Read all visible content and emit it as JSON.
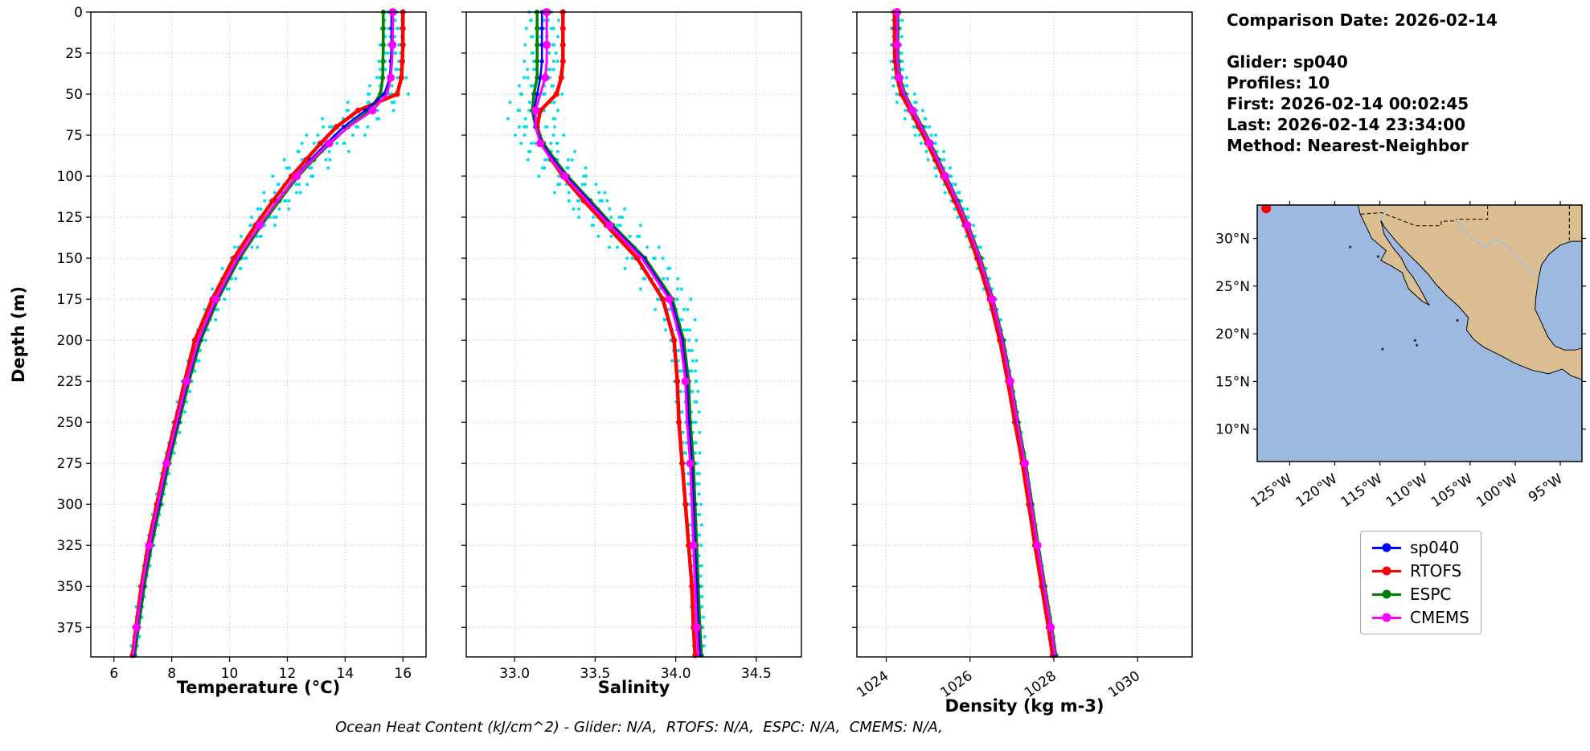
{
  "info_panel": {
    "comparison_date": "Comparison Date: 2026-02-14",
    "glider": "Glider: sp040",
    "profiles": "Profiles: 10",
    "first": "First: 2026-02-14 00:02:45",
    "last": "Last: 2026-02-14 23:34:00",
    "method": "Method: Nearest-Neighbor"
  },
  "footer_note": "Ocean Heat Content (kJ/cm^2) - Glider: N/A,  RTOFS: N/A,  ESPC: N/A,  CMEMS: N/A,",
  "map": {
    "land_color": "#dcbe93",
    "ocean_color": "#9db9e0",
    "river_color": "#93c1e6",
    "marker_color": "#ff0000",
    "lat_ticks": [
      {
        "value": 30,
        "label": "30°N"
      },
      {
        "value": 25,
        "label": "25°N"
      },
      {
        "value": 20,
        "label": "20°N"
      },
      {
        "value": 15,
        "label": "15°N"
      },
      {
        "value": 10,
        "label": "10°N"
      }
    ],
    "lon_ticks": [
      {
        "value": -125,
        "label": "125°W"
      },
      {
        "value": -120,
        "label": "120°W"
      },
      {
        "value": -115,
        "label": "115°W"
      },
      {
        "value": -110,
        "label": "110°W"
      },
      {
        "value": -105,
        "label": "105°W"
      },
      {
        "value": -100,
        "label": "100°W"
      },
      {
        "value": -95,
        "label": "95°W"
      }
    ]
  },
  "chart_data": {
    "type": "line",
    "ylabel": "Depth (m)",
    "ylim": [
      0,
      393
    ],
    "yticks": [
      0,
      25,
      50,
      75,
      100,
      125,
      150,
      175,
      200,
      225,
      250,
      275,
      300,
      325,
      350,
      375
    ],
    "depths": [
      0,
      10,
      20,
      30,
      40,
      50,
      60,
      70,
      80,
      90,
      100,
      115,
      130,
      150,
      175,
      200,
      225,
      250,
      275,
      300,
      325,
      350,
      375,
      392
    ],
    "series": [
      {
        "name": "sp040",
        "color": "#0000ff",
        "lw": 2.5,
        "ms": 2.5,
        "mark_every": 1
      },
      {
        "name": "RTOFS",
        "color": "#ff0000",
        "lw": 4.5,
        "ms": 3.5,
        "mark_every": 1
      },
      {
        "name": "ESPC",
        "color": "#008000",
        "lw": 3.5,
        "ms": 3.0,
        "mark_every": 1
      },
      {
        "name": "CMEMS",
        "color": "#ff00ff",
        "lw": 3.0,
        "ms": 5.0,
        "mark_every": 2
      }
    ],
    "scatter": {
      "name": "glider-profile-scatter",
      "color": "#00dfee",
      "offsets": [
        -1.0,
        -0.55,
        -0.2,
        0.25,
        0.65,
        1.0
      ]
    },
    "panels": [
      {
        "key": "temperature",
        "xlabel": "Temperature (°C)",
        "xlim": [
          5.2,
          16.8
        ],
        "xticks": [
          6,
          8,
          10,
          12,
          14,
          16
        ],
        "tick_decimals": 0,
        "rotate_xticks": 0,
        "values": {
          "sp040": [
            15.6,
            15.6,
            15.6,
            15.58,
            15.55,
            15.35,
            14.7,
            13.95,
            13.35,
            12.8,
            12.3,
            11.65,
            11.05,
            10.3,
            9.55,
            8.95,
            8.55,
            8.2,
            7.85,
            7.55,
            7.25,
            7.0,
            6.8,
            6.68
          ],
          "RTOFS": [
            16.0,
            16.0,
            16.0,
            15.98,
            15.95,
            15.8,
            14.45,
            13.7,
            13.15,
            12.65,
            12.15,
            11.5,
            10.9,
            10.15,
            9.4,
            8.8,
            8.45,
            8.12,
            7.78,
            7.48,
            7.18,
            6.95,
            6.76,
            6.64
          ],
          "ESPC": [
            15.32,
            15.32,
            15.32,
            15.31,
            15.3,
            15.22,
            14.85,
            14.1,
            13.48,
            12.9,
            12.38,
            11.72,
            11.1,
            10.35,
            9.6,
            9.0,
            8.6,
            8.25,
            7.9,
            7.6,
            7.3,
            7.05,
            6.85,
            6.72
          ],
          "CMEMS": [
            15.65,
            15.65,
            15.64,
            15.62,
            15.58,
            15.45,
            14.95,
            14.12,
            13.45,
            12.86,
            12.33,
            11.66,
            11.04,
            10.28,
            9.52,
            8.92,
            8.52,
            8.17,
            7.82,
            7.52,
            7.22,
            6.98,
            6.78,
            6.66
          ]
        },
        "scatter_envelope": [
          0.28,
          0.28,
          0.3,
          0.34,
          0.45,
          0.65,
          0.85,
          0.9,
          0.85,
          0.75,
          0.62,
          0.5,
          0.4,
          0.3,
          0.22,
          0.18,
          0.15,
          0.13,
          0.12,
          0.11,
          0.1,
          0.1,
          0.1,
          0.1
        ]
      },
      {
        "key": "salinity",
        "xlabel": "Salinity",
        "xlim": [
          32.7,
          34.78
        ],
        "xticks": [
          33.0,
          33.5,
          34.0,
          34.5
        ],
        "tick_decimals": 1,
        "rotate_xticks": 0,
        "values": {
          "sp040": [
            33.17,
            33.17,
            33.17,
            33.17,
            33.16,
            33.14,
            33.12,
            33.13,
            33.17,
            33.24,
            33.32,
            33.46,
            33.6,
            33.8,
            33.97,
            34.04,
            34.07,
            34.08,
            34.1,
            34.11,
            34.12,
            34.13,
            34.14,
            34.15
          ],
          "RTOFS": [
            33.3,
            33.3,
            33.3,
            33.3,
            33.29,
            33.26,
            33.16,
            33.14,
            33.17,
            33.23,
            33.3,
            33.43,
            33.57,
            33.76,
            33.92,
            33.99,
            34.01,
            34.02,
            34.04,
            34.06,
            34.08,
            34.1,
            34.11,
            34.12
          ],
          "ESPC": [
            33.14,
            33.14,
            33.14,
            33.14,
            33.14,
            33.12,
            33.11,
            33.13,
            33.18,
            33.25,
            33.33,
            33.47,
            33.61,
            33.81,
            33.98,
            34.05,
            34.08,
            34.09,
            34.11,
            34.12,
            34.13,
            34.14,
            34.15,
            34.16
          ],
          "CMEMS": [
            33.2,
            33.2,
            33.2,
            33.2,
            33.19,
            33.16,
            33.13,
            33.13,
            33.16,
            33.23,
            33.31,
            33.45,
            33.59,
            33.79,
            33.96,
            34.03,
            34.06,
            34.07,
            34.09,
            34.1,
            34.11,
            34.12,
            34.13,
            34.14
          ]
        },
        "scatter_envelope": [
          0.08,
          0.08,
          0.08,
          0.09,
          0.1,
          0.12,
          0.13,
          0.13,
          0.13,
          0.13,
          0.13,
          0.14,
          0.14,
          0.13,
          0.1,
          0.07,
          0.06,
          0.05,
          0.04,
          0.04,
          0.03,
          0.03,
          0.03,
          0.03
        ]
      },
      {
        "key": "density",
        "xlabel": "Density (kg m-3)",
        "xlim": [
          1023.3,
          1031.3
        ],
        "xticks": [
          1024,
          1026,
          1028,
          1030
        ],
        "tick_decimals": 0,
        "rotate_xticks": -35,
        "values": {
          "sp040": [
            1024.25,
            1024.25,
            1024.25,
            1024.26,
            1024.3,
            1024.42,
            1024.62,
            1024.83,
            1025.03,
            1025.22,
            1025.4,
            1025.68,
            1025.93,
            1026.22,
            1026.52,
            1026.76,
            1026.95,
            1027.12,
            1027.3,
            1027.45,
            1027.6,
            1027.76,
            1027.92,
            1028.02
          ],
          "RTOFS": [
            1024.2,
            1024.2,
            1024.2,
            1024.21,
            1024.26,
            1024.36,
            1024.57,
            1024.78,
            1024.98,
            1025.17,
            1025.35,
            1025.63,
            1025.88,
            1026.17,
            1026.47,
            1026.71,
            1026.9,
            1027.07,
            1027.25,
            1027.4,
            1027.55,
            1027.71,
            1027.87,
            1027.97
          ],
          "ESPC": [
            1024.28,
            1024.28,
            1024.28,
            1024.29,
            1024.33,
            1024.45,
            1024.65,
            1024.86,
            1025.06,
            1025.25,
            1025.43,
            1025.71,
            1025.96,
            1026.25,
            1026.55,
            1026.79,
            1026.98,
            1027.15,
            1027.33,
            1027.48,
            1027.63,
            1027.79,
            1027.95,
            1028.05
          ],
          "CMEMS": [
            1024.26,
            1024.26,
            1024.26,
            1024.27,
            1024.31,
            1024.43,
            1024.63,
            1024.84,
            1025.04,
            1025.23,
            1025.41,
            1025.69,
            1025.94,
            1026.23,
            1026.53,
            1026.77,
            1026.96,
            1027.13,
            1027.31,
            1027.46,
            1027.61,
            1027.77,
            1027.93,
            1028.03
          ]
        },
        "scatter_envelope": [
          0.1,
          0.1,
          0.1,
          0.12,
          0.15,
          0.2,
          0.22,
          0.22,
          0.2,
          0.18,
          0.16,
          0.14,
          0.12,
          0.1,
          0.08,
          0.06,
          0.05,
          0.05,
          0.04,
          0.04,
          0.04,
          0.04,
          0.04,
          0.04
        ]
      }
    ]
  }
}
